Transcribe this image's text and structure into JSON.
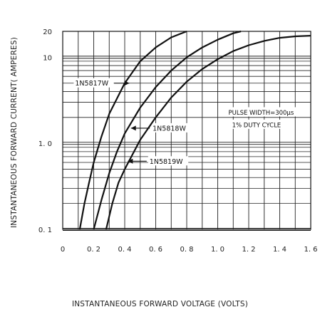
{
  "chart_data": {
    "type": "line",
    "xlabel": "INSTANTANEOUS FORWARD VOLTAGE (VOLTS)",
    "ylabel": "INSTANTANEOUS FORWARD CURRENT( AMPERES)",
    "xlim": [
      0,
      1.6
    ],
    "ylim": [
      0.1,
      20
    ],
    "y_scale": "log",
    "grid": true,
    "x_ticks": [
      "0",
      "0. 2",
      "0. 4",
      "0. 6",
      "0. 8",
      "1. 0",
      "1. 2",
      "1. 4",
      "1. 6"
    ],
    "y_ticks": [
      {
        "label": "20",
        "value": 20
      },
      {
        "label": "10",
        "value": 10
      },
      {
        "label": "1. 0",
        "value": 1.0
      },
      {
        "label": "0. 1",
        "value": 0.1
      }
    ],
    "annotations": [
      {
        "text": "PULSE WIDTH=300μs",
        "x": 1.28,
        "y": 2.3
      },
      {
        "text": "1% DUTY CYCLE",
        "x": 1.25,
        "y": 1.65
      }
    ],
    "series": [
      {
        "name": "1N5817W",
        "points": [
          [
            0.11,
            0.1
          ],
          [
            0.14,
            0.2
          ],
          [
            0.17,
            0.35
          ],
          [
            0.2,
            0.6
          ],
          [
            0.25,
            1.2
          ],
          [
            0.3,
            2.2
          ],
          [
            0.4,
            5
          ],
          [
            0.5,
            9
          ],
          [
            0.6,
            13
          ],
          [
            0.7,
            17
          ],
          [
            0.8,
            20
          ]
        ]
      },
      {
        "name": "1N5818W",
        "points": [
          [
            0.2,
            0.1
          ],
          [
            0.25,
            0.22
          ],
          [
            0.3,
            0.45
          ],
          [
            0.35,
            0.8
          ],
          [
            0.4,
            1.3
          ],
          [
            0.5,
            2.6
          ],
          [
            0.6,
            4.5
          ],
          [
            0.7,
            7
          ],
          [
            0.8,
            10
          ],
          [
            0.9,
            13
          ],
          [
            1.0,
            16
          ],
          [
            1.1,
            19
          ],
          [
            1.15,
            20
          ]
        ]
      },
      {
        "name": "1N5819W",
        "points": [
          [
            0.28,
            0.1
          ],
          [
            0.32,
            0.2
          ],
          [
            0.36,
            0.35
          ],
          [
            0.4,
            0.5
          ],
          [
            0.5,
            1.1
          ],
          [
            0.6,
            2
          ],
          [
            0.7,
            3.4
          ],
          [
            0.8,
            5.2
          ],
          [
            0.9,
            7.3
          ],
          [
            1.0,
            9.5
          ],
          [
            1.1,
            11.8
          ],
          [
            1.2,
            13.8
          ],
          [
            1.3,
            15.5
          ],
          [
            1.4,
            16.8
          ],
          [
            1.5,
            17.5
          ],
          [
            1.6,
            17.8
          ]
        ]
      }
    ],
    "labels": [
      {
        "series": "1N5817W",
        "x": 0.08,
        "y": 5.0,
        "tip": [
          0.43,
          5.0
        ]
      },
      {
        "series": "1N5818W",
        "x": 0.58,
        "y": 1.5,
        "tip": [
          0.44,
          1.5
        ]
      },
      {
        "series": "1N5819W",
        "x": 0.56,
        "y": 0.62,
        "tip": [
          0.42,
          0.62
        ]
      }
    ]
  }
}
